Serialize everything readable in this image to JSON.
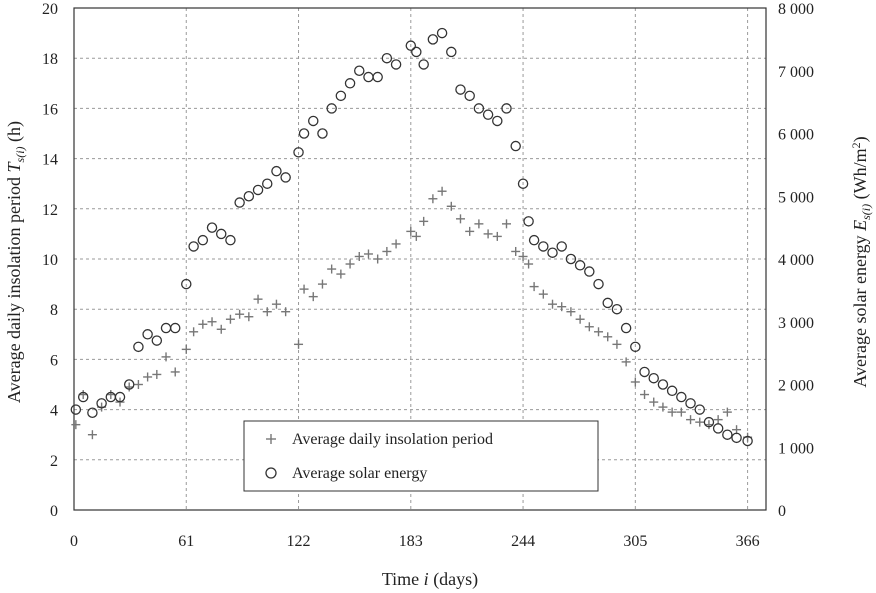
{
  "chart_data": {
    "type": "scatter",
    "title": "",
    "xlabel_prefix": "Time ",
    "xlabel_var": "i",
    "xlabel_suffix": " (days)",
    "ylabel_left_prefix": "Average daily insolation period ",
    "ylabel_left_var": "T",
    "ylabel_left_sub": "s(i)",
    "ylabel_left_suffix": " (h)",
    "ylabel_right_prefix": "Average solar energy ",
    "ylabel_right_var": "E",
    "ylabel_right_sub": "s(i)",
    "ylabel_right_suffix": " (Wh/m",
    "ylabel_right_sup": "2",
    "ylabel_right_close": ")",
    "xlim": [
      0,
      376
    ],
    "ylim_left": [
      0,
      20
    ],
    "ylim_right": [
      0,
      8000
    ],
    "x_ticks": [
      0,
      61,
      122,
      183,
      244,
      305,
      366
    ],
    "x_tick_labels": [
      "0",
      "61",
      "122",
      "183",
      "244",
      "305",
      "366"
    ],
    "y_left_ticks": [
      0,
      2,
      4,
      6,
      8,
      10,
      12,
      14,
      16,
      18,
      20
    ],
    "y_left_tick_labels": [
      "0",
      "2",
      "4",
      "6",
      "8",
      "10",
      "12",
      "14",
      "16",
      "18",
      "20"
    ],
    "y_right_ticks": [
      0,
      1000,
      2000,
      3000,
      4000,
      5000,
      6000,
      7000,
      8000
    ],
    "y_right_tick_labels": [
      "0",
      "1 000",
      "2 000",
      "3 000",
      "4 000",
      "5 000",
      "6 000",
      "7 000",
      "8 000"
    ],
    "grid": true,
    "legend_position": "lower-center",
    "series": [
      {
        "name": "Average daily insolation period",
        "marker": "plus",
        "axis": "left",
        "x": [
          1,
          5,
          10,
          15,
          20,
          25,
          30,
          35,
          40,
          45,
          50,
          55,
          61,
          65,
          70,
          75,
          80,
          85,
          90,
          95,
          100,
          105,
          110,
          115,
          122,
          125,
          130,
          135,
          140,
          145,
          150,
          155,
          160,
          165,
          170,
          175,
          183,
          186,
          190,
          195,
          200,
          205,
          210,
          215,
          220,
          225,
          230,
          235,
          240,
          244,
          247,
          250,
          255,
          260,
          265,
          270,
          275,
          280,
          285,
          290,
          295,
          300,
          305,
          310,
          315,
          320,
          325,
          330,
          335,
          340,
          345,
          350,
          355,
          360,
          366
        ],
        "y": [
          3.4,
          4.6,
          3.0,
          4.1,
          4.6,
          4.3,
          4.9,
          5.0,
          5.3,
          5.4,
          6.1,
          5.5,
          6.4,
          7.1,
          7.4,
          7.5,
          7.2,
          7.6,
          7.8,
          7.7,
          8.4,
          7.9,
          8.2,
          7.9,
          6.6,
          8.8,
          8.5,
          9.0,
          9.6,
          9.4,
          9.8,
          10.1,
          10.2,
          10.0,
          10.3,
          10.6,
          11.1,
          10.9,
          11.5,
          12.4,
          12.7,
          12.1,
          11.6,
          11.1,
          11.4,
          11.0,
          10.9,
          11.4,
          10.3,
          10.1,
          9.8,
          8.9,
          8.6,
          8.2,
          8.1,
          7.9,
          7.6,
          7.3,
          7.1,
          6.9,
          6.6,
          5.9,
          5.1,
          4.6,
          4.3,
          4.1,
          3.9,
          3.9,
          3.6,
          3.5,
          3.4,
          3.6,
          3.9,
          3.2,
          2.9
        ]
      },
      {
        "name": "Average solar energy",
        "marker": "circle",
        "axis": "right",
        "x": [
          1,
          5,
          10,
          15,
          20,
          25,
          30,
          35,
          40,
          45,
          50,
          55,
          61,
          65,
          70,
          75,
          80,
          85,
          90,
          95,
          100,
          105,
          110,
          115,
          122,
          125,
          130,
          135,
          140,
          145,
          150,
          155,
          160,
          165,
          170,
          175,
          183,
          186,
          190,
          195,
          200,
          205,
          210,
          215,
          220,
          225,
          230,
          235,
          240,
          244,
          247,
          250,
          255,
          260,
          265,
          270,
          275,
          280,
          285,
          290,
          295,
          300,
          305,
          310,
          315,
          320,
          325,
          330,
          335,
          340,
          345,
          350,
          355,
          360,
          366
        ],
        "y": [
          1600,
          1800,
          1550,
          1700,
          1800,
          1800,
          2000,
          2600,
          2800,
          2700,
          2900,
          2900,
          3600,
          4200,
          4300,
          4500,
          4400,
          4300,
          4900,
          5000,
          5100,
          5200,
          5400,
          5300,
          5700,
          6000,
          6200,
          6000,
          6400,
          6600,
          6800,
          7000,
          6900,
          6900,
          7200,
          7100,
          7400,
          7300,
          7100,
          7500,
          7600,
          7300,
          6700,
          6600,
          6400,
          6300,
          6200,
          6400,
          5800,
          5200,
          4600,
          4300,
          4200,
          4100,
          4200,
          4000,
          3900,
          3800,
          3600,
          3300,
          3200,
          2900,
          2600,
          2200,
          2100,
          2000,
          1900,
          1800,
          1700,
          1600,
          1400,
          1300,
          1200,
          1150,
          1100
        ]
      }
    ]
  }
}
